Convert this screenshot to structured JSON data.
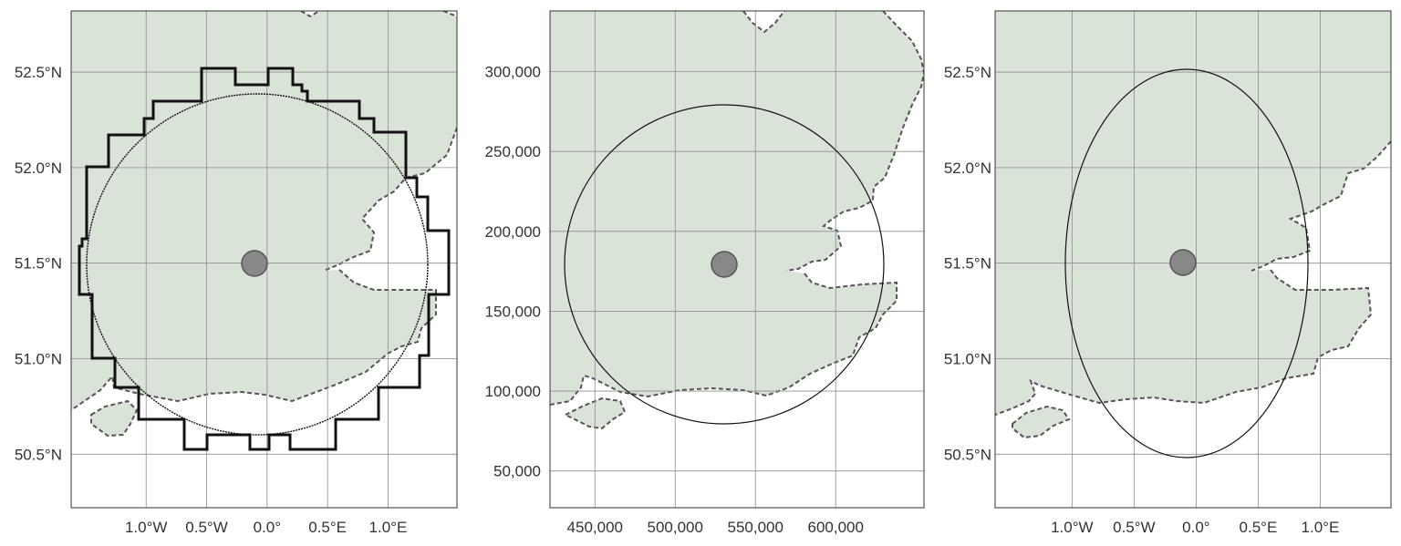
{
  "colors": {
    "land": "#d9e3d8",
    "coastline": "#555555",
    "grid": "#8a8f8a",
    "center_marker": "#888888",
    "buffer_outline": "#111111",
    "frame": "#333333"
  },
  "panels": [
    {
      "id": "lonlat-raster-buffer",
      "crs": "geographic",
      "xlim": [
        -1.62,
        1.57
      ],
      "ylim": [
        50.22,
        52.82
      ],
      "x_ticks": [
        {
          "value": -1.0,
          "label": "1.0°W"
        },
        {
          "value": -0.5,
          "label": "0.5°W"
        },
        {
          "value": 0.0,
          "label": "0.0°"
        },
        {
          "value": 0.5,
          "label": "0.5°E"
        },
        {
          "value": 1.0,
          "label": "1.0°E"
        }
      ],
      "y_ticks": [
        {
          "value": 50.5,
          "label": "50.5°N"
        },
        {
          "value": 51.0,
          "label": "51.0°N"
        },
        {
          "value": 51.5,
          "label": "51.5°N"
        },
        {
          "value": 52.0,
          "label": "52.0°N"
        },
        {
          "value": 52.5,
          "label": "52.5°N"
        }
      ],
      "center": {
        "lon": -0.128,
        "lat": 51.507
      },
      "features": [
        "stepped raster outline",
        "fine-stepped circle buffer",
        "center point"
      ]
    },
    {
      "id": "projected-buffer",
      "crs": "projected (metres)",
      "xlim": [
        422000,
        655000
      ],
      "ylim": [
        27000,
        338000
      ],
      "x_ticks": [
        {
          "value": 450000,
          "label": "450,000"
        },
        {
          "value": 500000,
          "label": "500,000"
        },
        {
          "value": 550000,
          "label": "550,000"
        },
        {
          "value": 600000,
          "label": "600,000"
        }
      ],
      "y_ticks": [
        {
          "value": 50000,
          "label": "50,000"
        },
        {
          "value": 100000,
          "label": "100,000"
        },
        {
          "value": 150000,
          "label": "150,000"
        },
        {
          "value": 200000,
          "label": "200,000"
        },
        {
          "value": 250000,
          "label": "250,000"
        },
        {
          "value": 300000,
          "label": "300,000"
        }
      ],
      "center": {
        "x": 530000,
        "y": 180000
      },
      "buffer_radius": 100000,
      "features": [
        "circle buffer",
        "center point"
      ]
    },
    {
      "id": "lonlat-ellipse-buffer",
      "crs": "geographic",
      "xlim": [
        -1.62,
        1.57
      ],
      "ylim": [
        50.22,
        52.82
      ],
      "x_ticks": [
        {
          "value": -1.0,
          "label": "1.0°W"
        },
        {
          "value": -0.5,
          "label": "0.5°W"
        },
        {
          "value": 0.0,
          "label": "0.0°"
        },
        {
          "value": 0.5,
          "label": "0.5°E"
        },
        {
          "value": 1.0,
          "label": "1.0°E"
        }
      ],
      "y_ticks": [
        {
          "value": 50.5,
          "label": "50.5°N"
        },
        {
          "value": 51.0,
          "label": "51.0°N"
        },
        {
          "value": 51.5,
          "label": "51.5°N"
        },
        {
          "value": 52.0,
          "label": "52.0°N"
        },
        {
          "value": 52.5,
          "label": "52.5°N"
        }
      ],
      "center": {
        "lon": -0.128,
        "lat": 51.507
      },
      "features": [
        "ellipse buffer",
        "center point"
      ]
    }
  ]
}
